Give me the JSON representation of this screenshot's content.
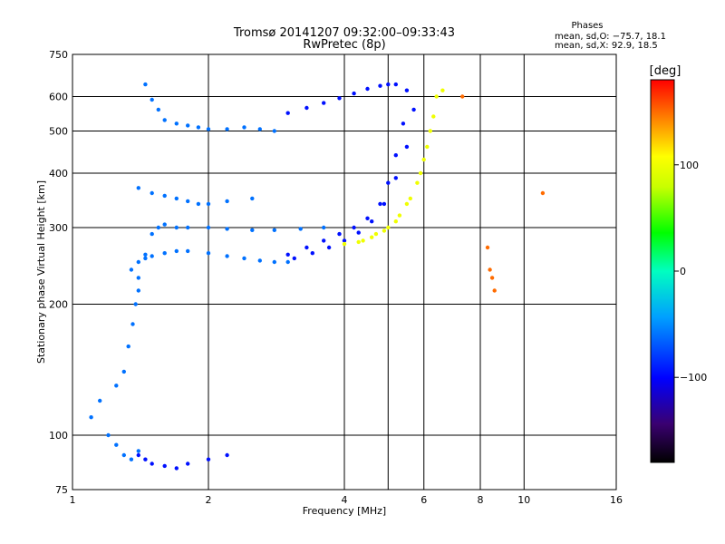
{
  "chart_data": {
    "type": "scatter",
    "title": "Tromsø 20141207 09:32:00–09:33:43",
    "subtitle": "RwPretec (8p)",
    "xlabel": "Frequency [MHz]",
    "ylabel": "Stationary phase Virtual Height [km]",
    "x_scale": "log",
    "y_scale": "log",
    "xlim": [
      1,
      16
    ],
    "ylim": [
      75,
      750
    ],
    "x_ticks": [
      1,
      2,
      4,
      6,
      8,
      10,
      16
    ],
    "x_tick_labels": [
      "1",
      "2",
      "4",
      "6",
      "8",
      "10",
      "16"
    ],
    "x_extra_gridlines": [
      5
    ],
    "y_ticks": [
      75,
      100,
      200,
      300,
      400,
      500,
      600,
      750
    ],
    "y_tick_labels": [
      "75",
      "100",
      "200",
      "300",
      "400",
      "500",
      "600",
      "750"
    ],
    "grid": true,
    "legend": {
      "heading": "Phases",
      "line1": "mean, sd,O: −75.7, 18.1",
      "line2": "mean, sd,X:  92.9, 18.5"
    },
    "colorbar": {
      "label": "[deg]",
      "min": -180,
      "max": 180,
      "ticks": [
        100,
        0,
        -100
      ],
      "tick_labels": [
        "100",
        "0",
        "−100"
      ],
      "colormap": "rainbow"
    },
    "series": [
      {
        "phase_deg": -60,
        "traces": [
          {
            "x": [
              1.45,
              1.5,
              1.55,
              1.6,
              1.7,
              1.8,
              1.9,
              2.0,
              2.2,
              2.4,
              2.6,
              2.8
            ],
            "y": [
              640,
              590,
              560,
              530,
              520,
              515,
              510,
              505,
              505,
              510,
              505,
              500
            ]
          },
          {
            "x": [
              1.4,
              1.45,
              1.5,
              1.55,
              1.6,
              1.7,
              1.8,
              2.0,
              2.2,
              2.5,
              2.8,
              3.2,
              3.6
            ],
            "y": [
              230,
              260,
              290,
              300,
              305,
              300,
              300,
              300,
              298,
              296,
              296,
              298,
              300
            ]
          },
          {
            "x": [
              1.35,
              1.4,
              1.45,
              1.5,
              1.6,
              1.7,
              1.8,
              2.0,
              2.2,
              2.4,
              2.6,
              2.8,
              3.0
            ],
            "y": [
              240,
              250,
              255,
              258,
              262,
              265,
              265,
              262,
              258,
              255,
              252,
              250,
              250
            ]
          },
          {
            "x": [
              1.4,
              1.5,
              1.6,
              1.7,
              1.8,
              1.9,
              2.0,
              2.2,
              2.5
            ],
            "y": [
              370,
              360,
              355,
              350,
              345,
              340,
              340,
              345,
              350
            ]
          },
          {
            "x": [
              1.25,
              1.3,
              1.33,
              1.36,
              1.38,
              1.4
            ],
            "y": [
              130,
              140,
              160,
              180,
              200,
              215
            ]
          },
          {
            "x": [
              1.1,
              1.15,
              1.2,
              1.25,
              1.3,
              1.35,
              1.4
            ],
            "y": [
              110,
              120,
              100,
              95,
              90,
              88,
              92
            ]
          }
        ]
      },
      {
        "phase_deg": -95,
        "traces": [
          {
            "x": [
              3.0,
              3.3,
              3.6,
              3.9,
              4.2,
              4.5,
              4.8,
              5.0,
              5.2
            ],
            "y": [
              550,
              565,
              580,
              595,
              610,
              625,
              635,
              640,
              640
            ]
          },
          {
            "x": [
              3.0,
              3.3,
              3.6,
              3.9,
              4.2,
              4.5,
              4.8,
              5.0,
              5.2,
              5.4,
              5.5
            ],
            "y": [
              260,
              270,
              280,
              290,
              300,
              315,
              340,
              380,
              440,
              520,
              620
            ]
          },
          {
            "x": [
              3.1,
              3.4,
              3.7,
              4.0,
              4.3,
              4.6,
              4.9,
              5.2,
              5.5,
              5.7
            ],
            "y": [
              255,
              262,
              270,
              280,
              292,
              310,
              340,
              390,
              460,
              560
            ]
          },
          {
            "x": [
              1.4,
              1.45,
              1.5,
              1.6,
              1.7,
              1.8,
              2.0,
              2.2
            ],
            "y": [
              90,
              88,
              86,
              85,
              84,
              86,
              88,
              90
            ]
          }
        ]
      },
      {
        "phase_deg": 100,
        "traces": [
          {
            "x": [
              4.0,
              4.3,
              4.6,
              4.9,
              5.2,
              5.5,
              5.8,
              6.0,
              6.2,
              6.4
            ],
            "y": [
              275,
              278,
              285,
              295,
              310,
              340,
              380,
              430,
              500,
              600
            ]
          },
          {
            "x": [
              4.4,
              4.7,
              5.0,
              5.3,
              5.6,
              5.9,
              6.1,
              6.3,
              6.6
            ],
            "y": [
              280,
              290,
              300,
              320,
              350,
              400,
              460,
              540,
              620
            ]
          }
        ]
      },
      {
        "phase_deg": 150,
        "traces": [
          {
            "x": [
              7.3,
              8.3,
              8.4,
              8.5,
              8.6,
              11.0
            ],
            "y": [
              600,
              270,
              240,
              230,
              215,
              360
            ]
          }
        ]
      }
    ]
  }
}
